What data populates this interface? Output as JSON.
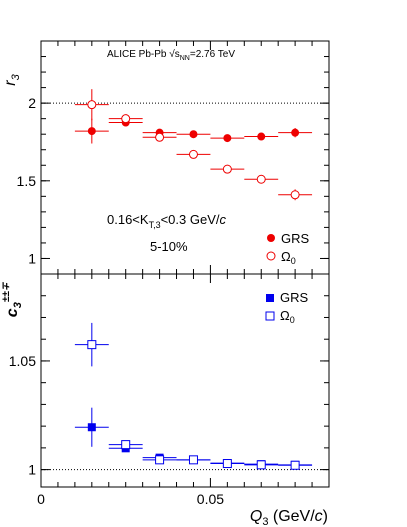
{
  "chart_data": [
    {
      "type": "scatter",
      "ylabel": "r",
      "ylabel_sub": "3",
      "ylim": [
        0.9,
        2.4
      ],
      "xlim": [
        0,
        0.085
      ],
      "yticks": [
        "1",
        "1.5",
        "2"
      ],
      "reference_line": 2.0,
      "annotations": {
        "experiment": "ALICE Pb-Pb √s",
        "energy_sub": "NN",
        "energy": "=2.76 TeV",
        "kt_range": "0.16<K",
        "kt_sub": "T,3",
        "kt_range_tail": "<0.3 GeV/",
        "kt_unit": "c",
        "centrality": "5-10%"
      },
      "legend_position": "bottom-right",
      "series": [
        {
          "name": "GRS",
          "marker": "filled-circle",
          "color": "#ee0000",
          "points": [
            {
              "x": 0.015,
              "y": 1.82,
              "xerr": 0.005,
              "yerr": 0.08
            },
            {
              "x": 0.025,
              "y": 1.875,
              "xerr": 0.005,
              "yerr": 0.02
            },
            {
              "x": 0.035,
              "y": 1.81,
              "xerr": 0.005,
              "yerr": 0.01
            },
            {
              "x": 0.045,
              "y": 1.8,
              "xerr": 0.005,
              "yerr": 0.01
            },
            {
              "x": 0.055,
              "y": 1.775,
              "xerr": 0.005,
              "yerr": 0.01
            },
            {
              "x": 0.065,
              "y": 1.785,
              "xerr": 0.005,
              "yerr": 0.015
            },
            {
              "x": 0.075,
              "y": 1.81,
              "xerr": 0.005,
              "yerr": 0.03
            }
          ]
        },
        {
          "name": "Ω",
          "name_sub": "0",
          "marker": "open-circle",
          "color": "#ee0000",
          "points": [
            {
              "x": 0.015,
              "y": 1.99,
              "xerr": 0.005,
              "yerr": 0.1
            },
            {
              "x": 0.025,
              "y": 1.9,
              "xerr": 0.005,
              "yerr": 0.02
            },
            {
              "x": 0.035,
              "y": 1.78,
              "xerr": 0.005,
              "yerr": 0.01
            },
            {
              "x": 0.045,
              "y": 1.67,
              "xerr": 0.005,
              "yerr": 0.01
            },
            {
              "x": 0.055,
              "y": 1.575,
              "xerr": 0.005,
              "yerr": 0.01
            },
            {
              "x": 0.065,
              "y": 1.51,
              "xerr": 0.005,
              "yerr": 0.015
            },
            {
              "x": 0.075,
              "y": 1.41,
              "xerr": 0.005,
              "yerr": 0.035
            }
          ]
        }
      ]
    },
    {
      "type": "scatter",
      "ylabel": "c",
      "ylabel_sub": "3",
      "ylabel_sup": "±±∓",
      "xlabel": "Q",
      "xlabel_sub": "3",
      "xlabel_unit_prefix": " (GeV/",
      "xlabel_unit_c": "c",
      "xlabel_unit_suffix": ")",
      "ylim": [
        0.992,
        1.09
      ],
      "xlim": [
        0,
        0.085
      ],
      "yticks": [
        "1",
        "1.05"
      ],
      "xticks": [
        "0",
        "0.05"
      ],
      "reference_line": 1.0,
      "legend_position": "top-right",
      "series": [
        {
          "name": "GRS",
          "marker": "filled-square",
          "color": "#0000ee",
          "points": [
            {
              "x": 0.015,
              "y": 1.0195,
              "xerr": 0.005,
              "yerr": 0.009
            },
            {
              "x": 0.025,
              "y": 1.0098,
              "xerr": 0.005,
              "yerr": 0.0015
            },
            {
              "x": 0.035,
              "y": 1.0055,
              "xerr": 0.005,
              "yerr": 0.0008
            },
            {
              "x": 0.045,
              "y": 1.0045,
              "xerr": 0.005,
              "yerr": 0.0006
            },
            {
              "x": 0.055,
              "y": 1.003,
              "xerr": 0.005,
              "yerr": 0.0005
            },
            {
              "x": 0.065,
              "y": 1.0025,
              "xerr": 0.005,
              "yerr": 0.0005
            },
            {
              "x": 0.075,
              "y": 1.0022,
              "xerr": 0.005,
              "yerr": 0.0005
            }
          ]
        },
        {
          "name": "Ω",
          "name_sub": "0",
          "marker": "open-square",
          "color": "#0000ee",
          "points": [
            {
              "x": 0.015,
              "y": 1.0575,
              "xerr": 0.005,
              "yerr": 0.01
            },
            {
              "x": 0.025,
              "y": 1.0115,
              "xerr": 0.005,
              "yerr": 0.0015
            },
            {
              "x": 0.035,
              "y": 1.0045,
              "xerr": 0.005,
              "yerr": 0.0008
            },
            {
              "x": 0.045,
              "y": 1.0045,
              "xerr": 0.005,
              "yerr": 0.0006
            },
            {
              "x": 0.055,
              "y": 1.0028,
              "xerr": 0.005,
              "yerr": 0.0005
            },
            {
              "x": 0.065,
              "y": 1.0022,
              "xerr": 0.005,
              "yerr": 0.0005
            },
            {
              "x": 0.075,
              "y": 1.002,
              "xerr": 0.005,
              "yerr": 0.0005
            }
          ]
        }
      ]
    }
  ]
}
